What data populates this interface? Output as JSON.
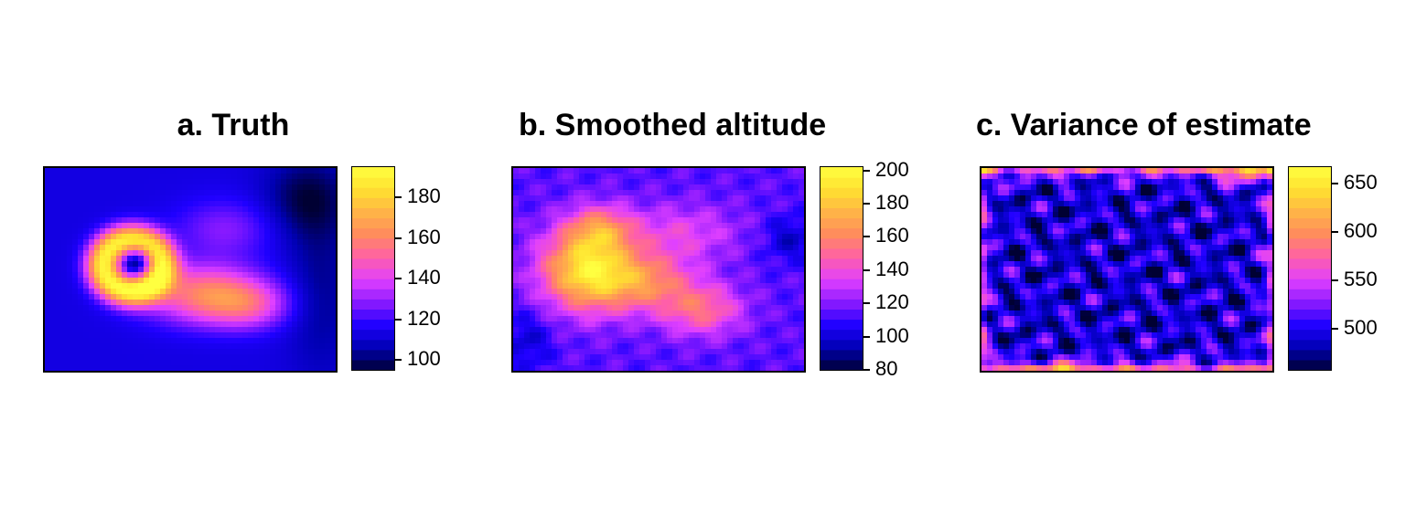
{
  "chart_data": [
    {
      "type": "heatmap",
      "title": "a. Truth",
      "xlabel": "",
      "ylabel": "",
      "colorbar": {
        "ticks": [
          100,
          120,
          140,
          160,
          180
        ],
        "range": [
          95,
          195
        ]
      },
      "colormap": [
        "#000033",
        "#0000b3",
        "#1f00ff",
        "#8a1aff",
        "#e040ff",
        "#ff5fa8",
        "#ff8a5e",
        "#ffb347",
        "#ffe030",
        "#ffff40"
      ],
      "description_values": {
        "background": 110,
        "peak": 195
      }
    },
    {
      "type": "heatmap",
      "title": "b. Smoothed altitude",
      "xlabel": "",
      "ylabel": "",
      "colorbar": {
        "ticks": [
          80,
          100,
          120,
          140,
          160,
          180,
          200
        ],
        "range": [
          80,
          202
        ]
      },
      "colormap": [
        "#000033",
        "#0000b3",
        "#1f00ff",
        "#8a1aff",
        "#e040ff",
        "#ff5fa8",
        "#ff8a5e",
        "#ffb347",
        "#ffe030",
        "#ffff40"
      ],
      "description_values": {
        "background": 115,
        "peak": 190
      }
    },
    {
      "type": "heatmap",
      "title": "c. Variance of estimate",
      "xlabel": "",
      "ylabel": "",
      "colorbar": {
        "ticks": [
          500,
          550,
          600,
          650
        ],
        "range": [
          458,
          667
        ]
      },
      "colormap": [
        "#000033",
        "#0000b3",
        "#1f00ff",
        "#8a1aff",
        "#e040ff",
        "#ff5fa8",
        "#ff8a5e",
        "#ffb347",
        "#ffe030",
        "#ffff40"
      ],
      "description_values": {
        "interior_low": 470,
        "edge_high": 660
      }
    }
  ]
}
